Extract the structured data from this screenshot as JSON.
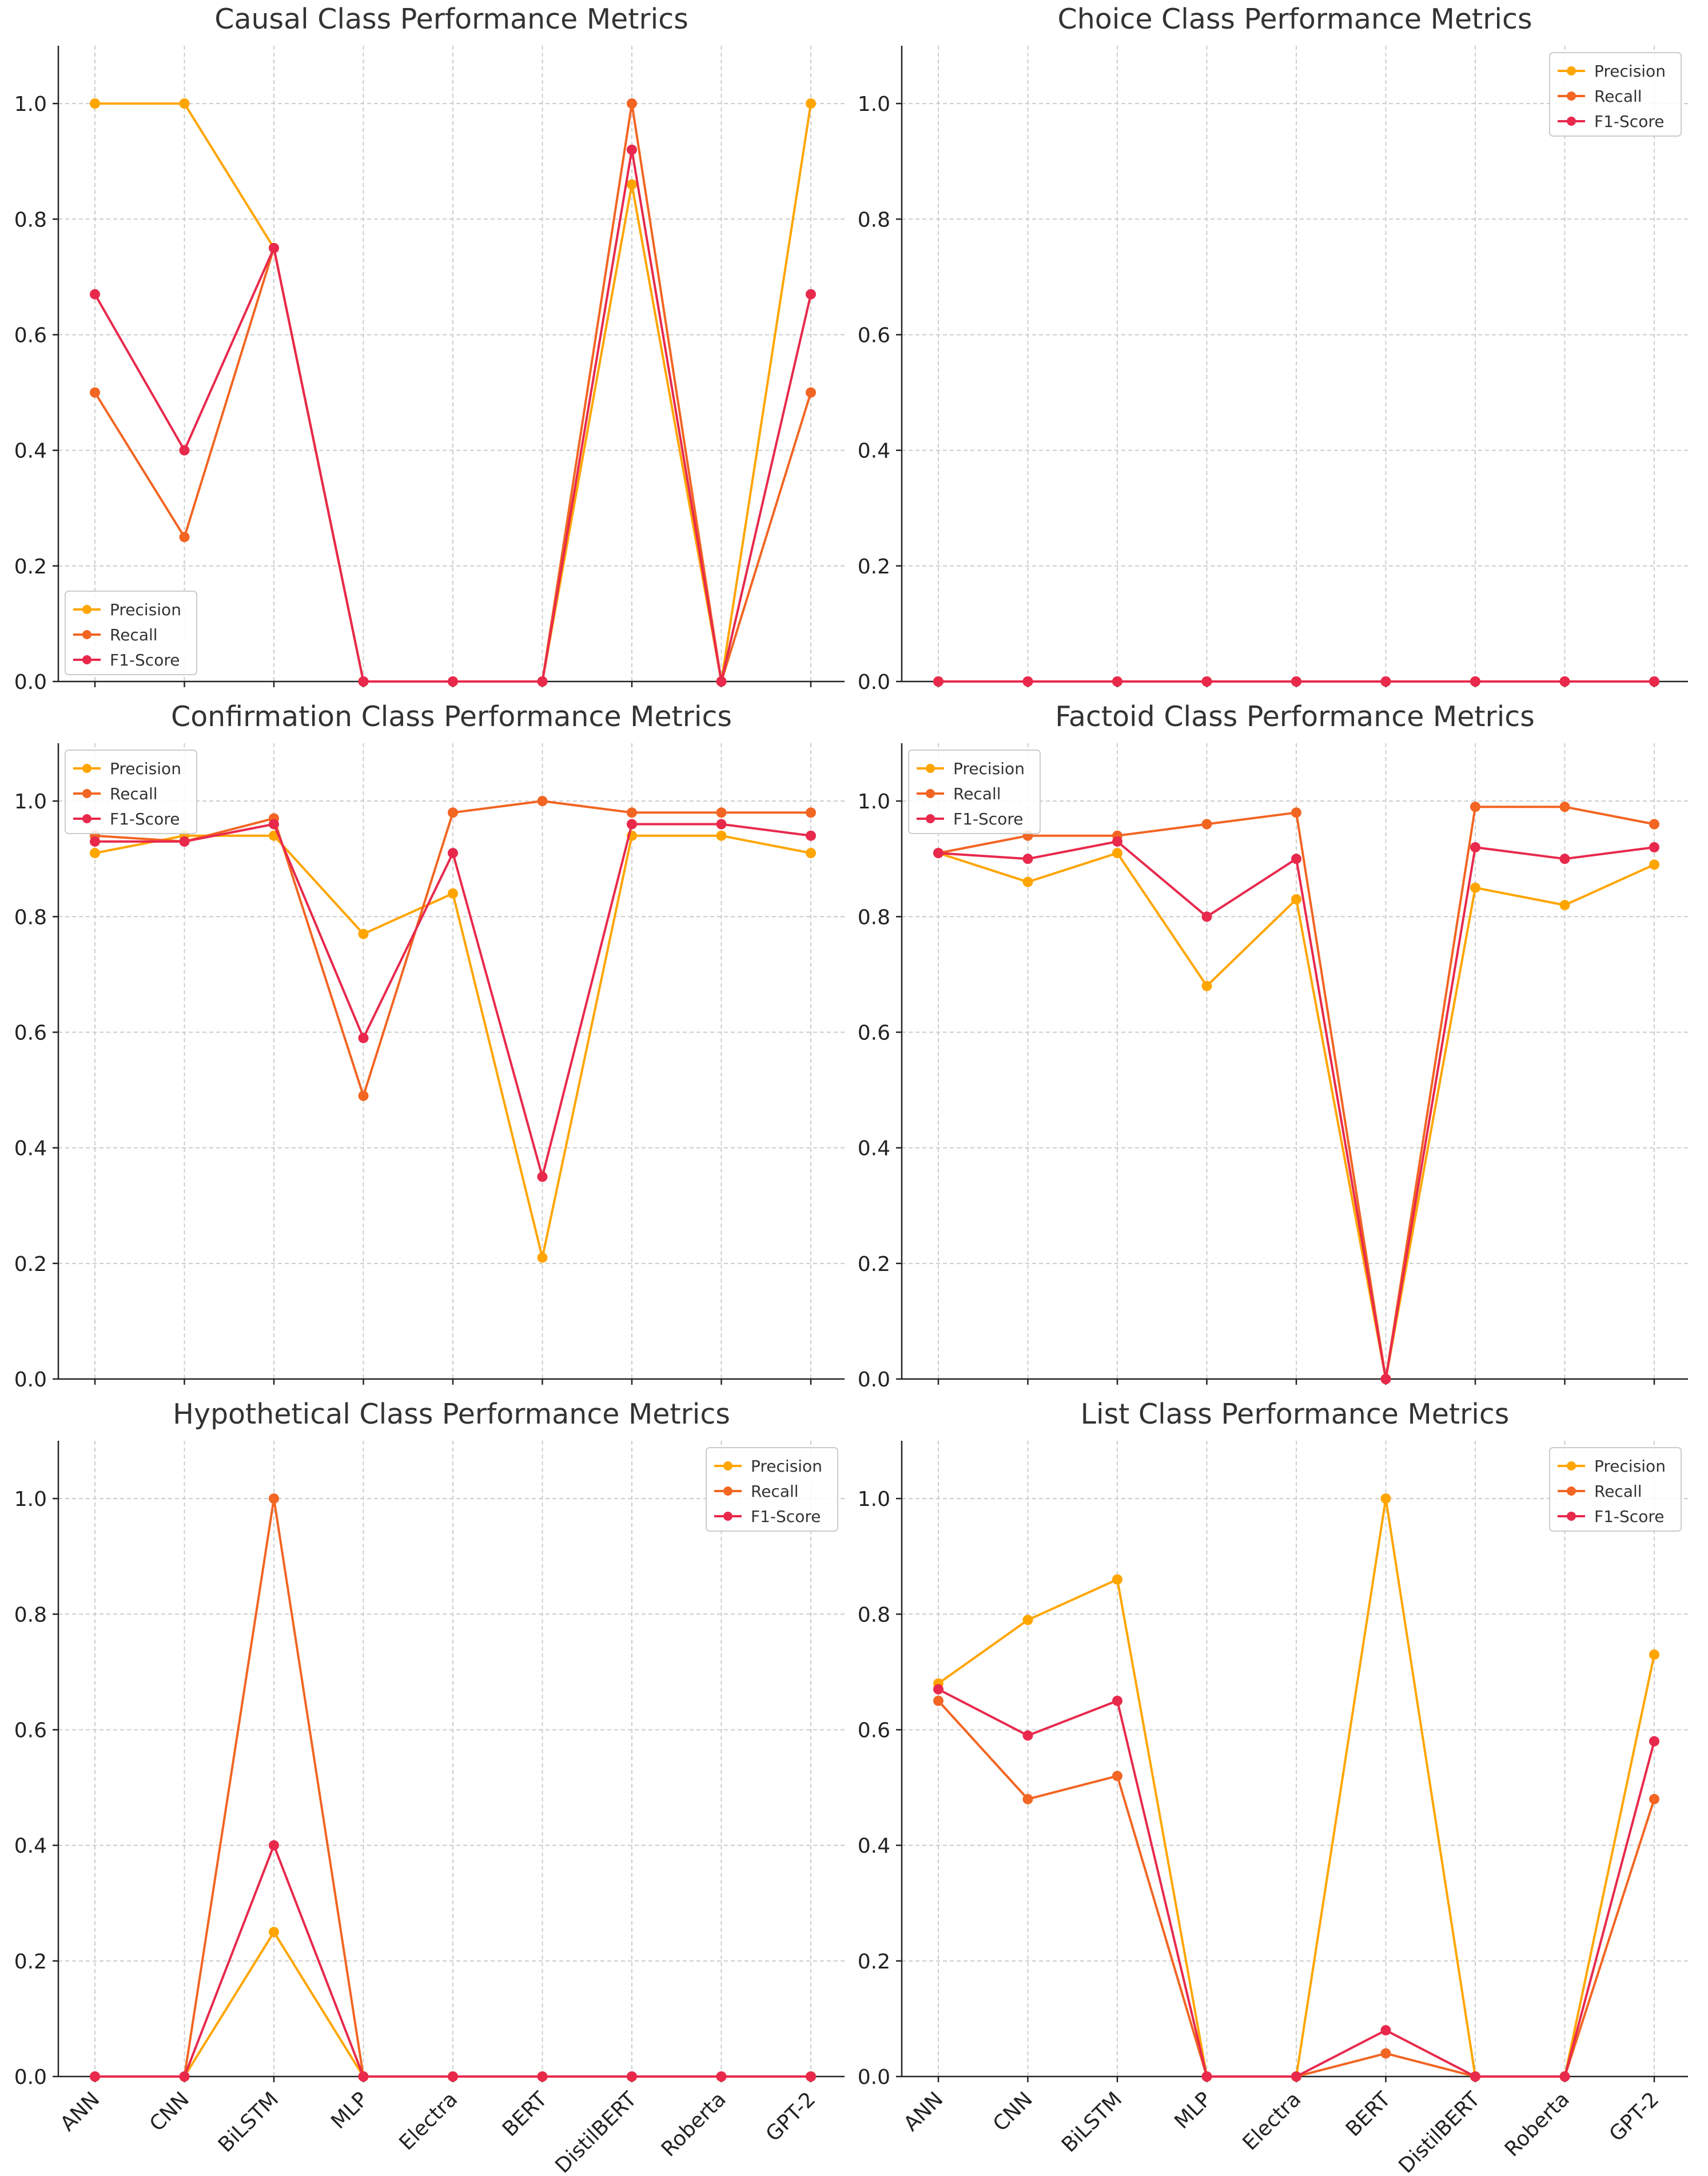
{
  "figure": {
    "categories": [
      "ANN",
      "CNN",
      "BiLSTM",
      "MLP",
      "Electra",
      "BERT",
      "DistilBERT",
      "Roberta",
      "GPT-2"
    ],
    "series_colors": {
      "Precision": "#FFA500",
      "Recall": "#F26522",
      "F1-Score": "#E8294C"
    }
  },
  "chart_data": [
    {
      "type": "line",
      "title": "Causal Class Performance Metrics",
      "categories": [
        "ANN",
        "CNN",
        "BiLSTM",
        "MLP",
        "Electra",
        "BERT",
        "DistilBERT",
        "Roberta",
        "GPT-2"
      ],
      "ylim": [
        0,
        1.1
      ],
      "yticks": [
        "0.0",
        "0.2",
        "0.4",
        "0.6",
        "0.8",
        "1.0"
      ],
      "grid": true,
      "legend": "lower-left",
      "xticklabels_shown": false,
      "series": [
        {
          "name": "Precision",
          "values": [
            1.0,
            1.0,
            0.75,
            0,
            0,
            0,
            0.86,
            0,
            1.0
          ]
        },
        {
          "name": "Recall",
          "values": [
            0.5,
            0.25,
            0.75,
            0,
            0,
            0,
            1.0,
            0,
            0.5
          ]
        },
        {
          "name": "F1-Score",
          "values": [
            0.67,
            0.4,
            0.75,
            0,
            0,
            0,
            0.92,
            0,
            0.67
          ]
        }
      ]
    },
    {
      "type": "line",
      "title": "Choice Class Performance Metrics",
      "categories": [
        "ANN",
        "CNN",
        "BiLSTM",
        "MLP",
        "Electra",
        "BERT",
        "DistilBERT",
        "Roberta",
        "GPT-2"
      ],
      "ylim": [
        0,
        1.1
      ],
      "yticks": [
        "0.0",
        "0.2",
        "0.4",
        "0.6",
        "0.8",
        "1.0"
      ],
      "grid": true,
      "legend": "upper-right",
      "xticklabels_shown": false,
      "series": [
        {
          "name": "Precision",
          "values": [
            0,
            0,
            0,
            0,
            0,
            0,
            0,
            0,
            0
          ]
        },
        {
          "name": "Recall",
          "values": [
            0,
            0,
            0,
            0,
            0,
            0,
            0,
            0,
            0
          ]
        },
        {
          "name": "F1-Score",
          "values": [
            0,
            0,
            0,
            0,
            0,
            0,
            0,
            0,
            0
          ]
        }
      ]
    },
    {
      "type": "line",
      "title": "Confirmation Class Performance Metrics",
      "categories": [
        "ANN",
        "CNN",
        "BiLSTM",
        "MLP",
        "Electra",
        "BERT",
        "DistilBERT",
        "Roberta",
        "GPT-2"
      ],
      "ylim": [
        0,
        1.1
      ],
      "yticks": [
        "0.0",
        "0.2",
        "0.4",
        "0.6",
        "0.8",
        "1.0"
      ],
      "grid": true,
      "legend": "upper-left",
      "xticklabels_shown": false,
      "series": [
        {
          "name": "Precision",
          "values": [
            0.91,
            0.94,
            0.94,
            0.77,
            0.84,
            0.21,
            0.94,
            0.94,
            0.91
          ]
        },
        {
          "name": "Recall",
          "values": [
            0.94,
            0.93,
            0.97,
            0.49,
            0.98,
            1.0,
            0.98,
            0.98,
            0.98
          ]
        },
        {
          "name": "F1-Score",
          "values": [
            0.93,
            0.93,
            0.96,
            0.59,
            0.91,
            0.35,
            0.96,
            0.96,
            0.94
          ]
        }
      ]
    },
    {
      "type": "line",
      "title": "Factoid Class Performance Metrics",
      "categories": [
        "ANN",
        "CNN",
        "BiLSTM",
        "MLP",
        "Electra",
        "BERT",
        "DistilBERT",
        "Roberta",
        "GPT-2"
      ],
      "ylim": [
        0,
        1.1
      ],
      "yticks": [
        "0.0",
        "0.2",
        "0.4",
        "0.6",
        "0.8",
        "1.0"
      ],
      "grid": true,
      "legend": "upper-left",
      "xticklabels_shown": false,
      "series": [
        {
          "name": "Precision",
          "values": [
            0.91,
            0.86,
            0.91,
            0.68,
            0.83,
            0,
            0.85,
            0.82,
            0.89
          ]
        },
        {
          "name": "Recall",
          "values": [
            0.91,
            0.94,
            0.94,
            0.96,
            0.98,
            0,
            0.99,
            0.99,
            0.96
          ]
        },
        {
          "name": "F1-Score",
          "values": [
            0.91,
            0.9,
            0.93,
            0.8,
            0.9,
            0,
            0.92,
            0.9,
            0.92
          ]
        }
      ]
    },
    {
      "type": "line",
      "title": "Hypothetical Class Performance Metrics",
      "categories": [
        "ANN",
        "CNN",
        "BiLSTM",
        "MLP",
        "Electra",
        "BERT",
        "DistilBERT",
        "Roberta",
        "GPT-2"
      ],
      "ylim": [
        0,
        1.1
      ],
      "yticks": [
        "0.0",
        "0.2",
        "0.4",
        "0.6",
        "0.8",
        "1.0"
      ],
      "grid": true,
      "legend": "upper-right",
      "xticklabels_shown": true,
      "series": [
        {
          "name": "Precision",
          "values": [
            0,
            0,
            0.25,
            0,
            0,
            0,
            0,
            0,
            0
          ]
        },
        {
          "name": "Recall",
          "values": [
            0,
            0,
            1.0,
            0,
            0,
            0,
            0,
            0,
            0
          ]
        },
        {
          "name": "F1-Score",
          "values": [
            0,
            0,
            0.4,
            0,
            0,
            0,
            0,
            0,
            0
          ]
        }
      ]
    },
    {
      "type": "line",
      "title": "List Class Performance Metrics",
      "categories": [
        "ANN",
        "CNN",
        "BiLSTM",
        "MLP",
        "Electra",
        "BERT",
        "DistilBERT",
        "Roberta",
        "GPT-2"
      ],
      "ylim": [
        0,
        1.1
      ],
      "yticks": [
        "0.0",
        "0.2",
        "0.4",
        "0.6",
        "0.8",
        "1.0"
      ],
      "grid": true,
      "legend": "upper-right",
      "xticklabels_shown": true,
      "series": [
        {
          "name": "Precision",
          "values": [
            0.68,
            0.79,
            0.86,
            0,
            0,
            1.0,
            0,
            0,
            0.73
          ]
        },
        {
          "name": "Recall",
          "values": [
            0.65,
            0.48,
            0.52,
            0,
            0,
            0.04,
            0,
            0,
            0.48
          ]
        },
        {
          "name": "F1-Score",
          "values": [
            0.67,
            0.59,
            0.65,
            0,
            0,
            0.08,
            0,
            0,
            0.58
          ]
        }
      ]
    }
  ]
}
